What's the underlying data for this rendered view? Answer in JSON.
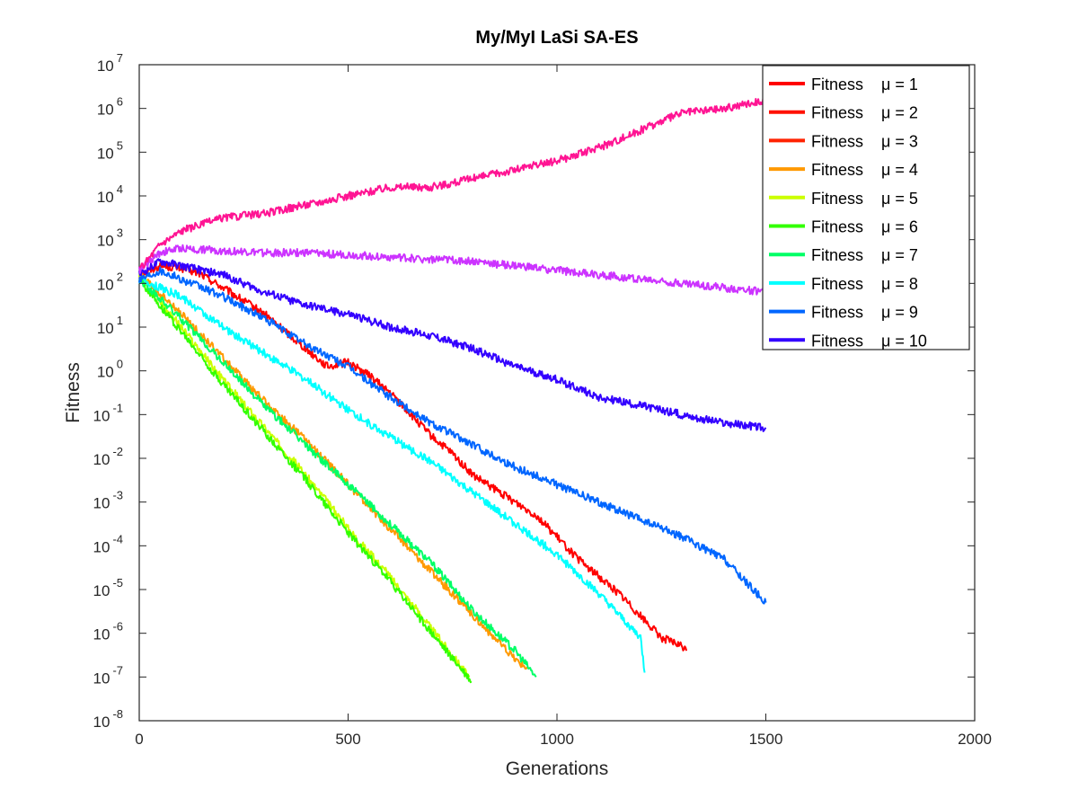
{
  "chart_data": {
    "type": "line",
    "title": "My/MyI LaSi SA-ES",
    "xlabel": "Generations",
    "ylabel": "Fitness",
    "xlim": [
      0,
      2000
    ],
    "ylim_log10": [
      -8,
      7
    ],
    "yscale": "log",
    "grid": false,
    "legend_position": "top-right",
    "x_ticks": [
      "0",
      "500",
      "1000",
      "1500",
      "2000"
    ],
    "y_tick_exponents": [
      "-8",
      "-7",
      "-6",
      "-5",
      "-4",
      "-3",
      "-2",
      "-1",
      "0",
      "1",
      "2",
      "3",
      "4",
      "5",
      "6",
      "7"
    ],
    "y_tick_base": "10",
    "series": [
      {
        "name": "Fitness    μ = 1",
        "color": "#ff0000",
        "x": [
          0,
          50,
          100,
          150,
          200,
          250,
          300,
          350,
          400,
          450,
          500,
          550,
          600,
          650,
          700,
          750,
          800,
          850,
          900,
          950,
          1000,
          1050,
          1100,
          1150,
          1200,
          1250,
          1300,
          1310
        ],
        "log10y": [
          2.2,
          2.4,
          2.35,
          2.2,
          1.9,
          1.6,
          1.3,
          0.9,
          0.5,
          0.1,
          0.2,
          -0.1,
          -0.5,
          -1.0,
          -1.5,
          -1.9,
          -2.4,
          -2.7,
          -3.0,
          -3.3,
          -3.8,
          -4.3,
          -4.7,
          -5.1,
          -5.6,
          -6.1,
          -6.3,
          -6.4
        ]
      },
      {
        "name": "Fitness    μ = 2",
        "color": "#ff1100",
        "x": [],
        "log10y": []
      },
      {
        "name": "Fitness    μ = 3",
        "color": "#ff2200",
        "x": [],
        "log10y": []
      },
      {
        "name": "Fitness    μ = 4",
        "color": "#ff9900",
        "x": [
          0,
          100,
          200,
          300,
          400,
          500,
          600,
          700,
          800,
          900,
          930
        ],
        "log10y": [
          2.2,
          1.3,
          0.3,
          -0.7,
          -1.6,
          -2.6,
          -3.6,
          -4.6,
          -5.6,
          -6.6,
          -6.8
        ]
      },
      {
        "name": "Fitness    μ = 5",
        "color": "#ccff00",
        "x": [
          0,
          100,
          200,
          300,
          400,
          500,
          600,
          700,
          790
        ],
        "log10y": [
          2.2,
          1.0,
          -0.2,
          -1.3,
          -2.4,
          -3.6,
          -4.7,
          -5.9,
          -7.0
        ]
      },
      {
        "name": "Fitness    μ = 6",
        "color": "#33ff00",
        "x": [
          0,
          100,
          200,
          300,
          400,
          500,
          600,
          700,
          795
        ],
        "log10y": [
          2.1,
          0.9,
          -0.3,
          -1.4,
          -2.5,
          -3.7,
          -4.8,
          -6.0,
          -7.1
        ]
      },
      {
        "name": "Fitness    μ = 7",
        "color": "#00ff66",
        "x": [
          0,
          100,
          200,
          300,
          400,
          500,
          600,
          700,
          800,
          900,
          950
        ],
        "log10y": [
          2.1,
          1.2,
          0.2,
          -0.8,
          -1.7,
          -2.6,
          -3.5,
          -4.4,
          -5.5,
          -6.4,
          -7.0
        ]
      },
      {
        "name": "Fitness    μ = 8",
        "color": "#00ffff",
        "x": [
          0,
          100,
          200,
          300,
          400,
          500,
          600,
          700,
          800,
          900,
          1000,
          1100,
          1200,
          1210
        ],
        "log10y": [
          2.1,
          1.7,
          1.0,
          0.4,
          -0.2,
          -0.9,
          -1.5,
          -2.1,
          -2.8,
          -3.5,
          -4.2,
          -5.1,
          -6.1,
          -6.9
        ]
      },
      {
        "name": "Fitness    μ = 9",
        "color": "#0066ff",
        "x": [
          0,
          50,
          100,
          200,
          300,
          400,
          500,
          600,
          700,
          800,
          900,
          1000,
          1100,
          1200,
          1300,
          1400,
          1500
        ],
        "log10y": [
          2.1,
          2.3,
          2.1,
          1.7,
          1.2,
          0.6,
          0.1,
          -0.6,
          -1.2,
          -1.7,
          -2.2,
          -2.6,
          -3.0,
          -3.4,
          -3.8,
          -4.3,
          -5.3
        ]
      },
      {
        "name": "Fitness    μ = 10",
        "color": "#3300ff",
        "x": [
          0,
          50,
          100,
          200,
          300,
          400,
          500,
          600,
          700,
          800,
          900,
          1000,
          1100,
          1200,
          1300,
          1400,
          1500
        ],
        "log10y": [
          2.2,
          2.5,
          2.4,
          2.2,
          1.8,
          1.5,
          1.3,
          1.0,
          0.8,
          0.5,
          0.1,
          -0.2,
          -0.6,
          -0.8,
          -1.0,
          -1.2,
          -1.3
        ]
      },
      {
        "name": "",
        "color": "#cc33ff",
        "x": [
          0,
          50,
          100,
          200,
          300,
          400,
          500,
          600,
          700,
          800,
          900,
          1000,
          1100,
          1200,
          1300,
          1400,
          1500
        ],
        "log10y": [
          2.3,
          2.7,
          2.8,
          2.75,
          2.7,
          2.7,
          2.65,
          2.6,
          2.55,
          2.5,
          2.4,
          2.3,
          2.2,
          2.1,
          2.0,
          1.9,
          1.8
        ]
      },
      {
        "name": "",
        "color": "#ff1493",
        "x": [
          0,
          50,
          100,
          200,
          300,
          400,
          500,
          600,
          700,
          800,
          900,
          1000,
          1100,
          1200,
          1300,
          1400,
          1500
        ],
        "log10y": [
          2.3,
          2.9,
          3.2,
          3.5,
          3.6,
          3.8,
          4.0,
          4.2,
          4.2,
          4.4,
          4.6,
          4.8,
          5.1,
          5.5,
          5.9,
          6.0,
          6.2
        ]
      }
    ]
  }
}
